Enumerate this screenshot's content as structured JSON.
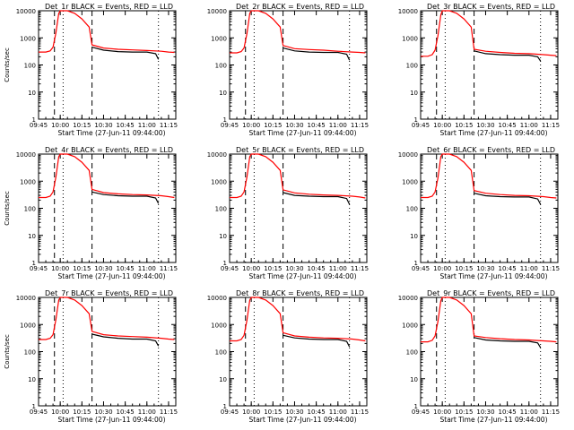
{
  "colors": {
    "events": "#000000",
    "lld": "#ff0000",
    "axes": "#000000",
    "background": "#ffffff"
  },
  "chart_data": [
    {
      "type": "line",
      "title": "Det_1r  BLACK = Events, RED = LLD",
      "xlabel": "Start Time (27-Jun-11 09:44:00)",
      "ylabel": "Counts/sec",
      "scale_y": "log",
      "ylim": [
        1,
        10000
      ],
      "xlim": [
        "09:45",
        "11:20"
      ],
      "xticks": [
        "09:45",
        "10:00",
        "10:15",
        "10:30",
        "10:45",
        "11:00",
        "11:15"
      ],
      "yticks": [
        "1",
        "10",
        "100",
        "1000",
        "10000"
      ],
      "dashed_vlines": [
        "09:56",
        "10:22"
      ],
      "dotted_vlines": [
        "10:02",
        "11:08"
      ],
      "grid": false,
      "series": [
        {
          "color": "red",
          "x": [
            "09:45",
            "09:50",
            "09:53",
            "09:55",
            "09:57",
            "09:59",
            "10:00",
            "10:05",
            "10:10",
            "10:15",
            "10:20",
            "10:22",
            "10:30",
            "10:40",
            "10:50",
            "11:00",
            "11:10",
            "11:15",
            "11:19"
          ],
          "values": [
            300,
            300,
            330,
            450,
            1500,
            8000,
            10000,
            10000,
            8000,
            5000,
            2500,
            550,
            420,
            380,
            360,
            340,
            320,
            300,
            290
          ]
        },
        {
          "color": "black",
          "x": [
            "10:22",
            "10:30",
            "10:40",
            "10:50",
            "11:00",
            "11:06",
            "11:08"
          ],
          "values": [
            450,
            350,
            310,
            300,
            300,
            260,
            160
          ]
        }
      ]
    },
    {
      "type": "line",
      "title": "Det_2r  BLACK = Events, RED = LLD",
      "xlabel": "Start Time (27-Jun-11 09:44:00)",
      "ylabel": "",
      "scale_y": "log",
      "ylim": [
        1,
        10000
      ],
      "xlim": [
        "09:45",
        "11:20"
      ],
      "xticks": [
        "09:45",
        "10:00",
        "10:15",
        "10:30",
        "10:45",
        "11:00",
        "11:15"
      ],
      "yticks": [
        "1",
        "10",
        "100",
        "1000",
        "10000"
      ],
      "dashed_vlines": [
        "09:56",
        "10:22"
      ],
      "dotted_vlines": [
        "10:02",
        "11:08"
      ],
      "grid": false,
      "series": [
        {
          "color": "red",
          "x": [
            "09:45",
            "09:50",
            "09:53",
            "09:55",
            "09:57",
            "09:59",
            "10:00",
            "10:05",
            "10:10",
            "10:15",
            "10:20",
            "10:22",
            "10:30",
            "10:40",
            "10:50",
            "11:00",
            "11:10",
            "11:15",
            "11:19"
          ],
          "values": [
            280,
            280,
            310,
            420,
            1400,
            8000,
            10000,
            10000,
            8000,
            5000,
            2500,
            520,
            400,
            370,
            350,
            320,
            300,
            290,
            280
          ]
        },
        {
          "color": "black",
          "x": [
            "10:22",
            "10:30",
            "10:40",
            "10:50",
            "11:00",
            "11:06",
            "11:08"
          ],
          "values": [
            420,
            330,
            300,
            290,
            290,
            250,
            150
          ]
        }
      ]
    },
    {
      "type": "line",
      "title": "Det_3r  BLACK = Events, RED = LLD",
      "xlabel": "Start Time (27-Jun-11 09:44:00)",
      "ylabel": "",
      "scale_y": "log",
      "ylim": [
        1,
        10000
      ],
      "xlim": [
        "09:45",
        "11:20"
      ],
      "xticks": [
        "09:45",
        "10:00",
        "10:15",
        "10:30",
        "10:45",
        "11:00",
        "11:15"
      ],
      "yticks": [
        "1",
        "10",
        "100",
        "1000",
        "10000"
      ],
      "dashed_vlines": [
        "09:56",
        "10:22"
      ],
      "dotted_vlines": [
        "10:02",
        "11:08"
      ],
      "grid": false,
      "series": [
        {
          "color": "red",
          "x": [
            "09:45",
            "09:50",
            "09:53",
            "09:55",
            "09:57",
            "09:59",
            "10:00",
            "10:05",
            "10:10",
            "10:15",
            "10:20",
            "10:22",
            "10:30",
            "10:40",
            "10:50",
            "11:00",
            "11:10",
            "11:15",
            "11:19"
          ],
          "values": [
            210,
            210,
            240,
            350,
            1200,
            7000,
            10000,
            10000,
            8000,
            5000,
            2500,
            380,
            320,
            290,
            270,
            260,
            240,
            230,
            220
          ]
        },
        {
          "color": "black",
          "x": [
            "10:22",
            "10:30",
            "10:40",
            "10:50",
            "11:00",
            "11:06",
            "11:08"
          ],
          "values": [
            330,
            260,
            240,
            230,
            230,
            200,
            140
          ]
        }
      ]
    },
    {
      "type": "line",
      "title": "Det_4r  BLACK = Events, RED = LLD",
      "xlabel": "Start Time (27-Jun-11 09:44:00)",
      "ylabel": "Counts/sec",
      "scale_y": "log",
      "ylim": [
        1,
        10000
      ],
      "xlim": [
        "09:45",
        "11:20"
      ],
      "xticks": [
        "09:45",
        "10:00",
        "10:15",
        "10:30",
        "10:45",
        "11:00",
        "11:15"
      ],
      "yticks": [
        "1",
        "10",
        "100",
        "1000",
        "10000"
      ],
      "dashed_vlines": [
        "09:56",
        "10:22"
      ],
      "dotted_vlines": [
        "10:02",
        "11:08"
      ],
      "grid": false,
      "series": [
        {
          "color": "red",
          "x": [
            "09:45",
            "09:50",
            "09:53",
            "09:55",
            "09:57",
            "09:59",
            "10:00",
            "10:05",
            "10:10",
            "10:15",
            "10:20",
            "10:22",
            "10:30",
            "10:40",
            "10:50",
            "11:00",
            "11:10",
            "11:15",
            "11:19"
          ],
          "values": [
            250,
            250,
            280,
            400,
            1400,
            8000,
            10000,
            10000,
            8000,
            5000,
            2500,
            500,
            380,
            340,
            320,
            310,
            290,
            270,
            250
          ]
        },
        {
          "color": "black",
          "x": [
            "10:22",
            "10:30",
            "10:40",
            "10:50",
            "11:00",
            "11:06",
            "11:08"
          ],
          "values": [
            400,
            320,
            290,
            280,
            280,
            240,
            150
          ]
        }
      ]
    },
    {
      "type": "line",
      "title": "Det_5r  BLACK = Events, RED = LLD",
      "xlabel": "Start Time (27-Jun-11 09:44:00)",
      "ylabel": "",
      "scale_y": "log",
      "ylim": [
        1,
        10000
      ],
      "xlim": [
        "09:45",
        "11:20"
      ],
      "xticks": [
        "09:45",
        "10:00",
        "10:15",
        "10:30",
        "10:45",
        "11:00",
        "11:15"
      ],
      "yticks": [
        "1",
        "10",
        "100",
        "1000",
        "10000"
      ],
      "dashed_vlines": [
        "09:56",
        "10:22"
      ],
      "dotted_vlines": [
        "10:02",
        "11:08"
      ],
      "grid": false,
      "series": [
        {
          "color": "red",
          "x": [
            "09:45",
            "09:50",
            "09:53",
            "09:55",
            "09:57",
            "09:59",
            "10:00",
            "10:05",
            "10:10",
            "10:15",
            "10:20",
            "10:22",
            "10:30",
            "10:40",
            "10:50",
            "11:00",
            "11:10",
            "11:15",
            "11:19"
          ],
          "values": [
            250,
            250,
            280,
            400,
            1400,
            8000,
            10000,
            10000,
            8000,
            5000,
            2500,
            480,
            370,
            330,
            310,
            300,
            280,
            260,
            240
          ]
        },
        {
          "color": "black",
          "x": [
            "10:22",
            "10:30",
            "10:40",
            "10:50",
            "11:00",
            "11:06",
            "11:08"
          ],
          "values": [
            380,
            300,
            280,
            270,
            270,
            230,
            140
          ]
        }
      ]
    },
    {
      "type": "line",
      "title": "Det_6r  BLACK = Events, RED = LLD",
      "xlabel": "Start Time (27-Jun-11 09:44:00)",
      "ylabel": "",
      "scale_y": "log",
      "ylim": [
        1,
        10000
      ],
      "xlim": [
        "09:45",
        "11:20"
      ],
      "xticks": [
        "09:45",
        "10:00",
        "10:15",
        "10:30",
        "10:45",
        "11:00",
        "11:15"
      ],
      "yticks": [
        "1",
        "10",
        "100",
        "1000",
        "10000"
      ],
      "dashed_vlines": [
        "09:56",
        "10:22"
      ],
      "dotted_vlines": [
        "10:02",
        "11:08"
      ],
      "grid": false,
      "series": [
        {
          "color": "red",
          "x": [
            "09:45",
            "09:50",
            "09:53",
            "09:55",
            "09:57",
            "09:59",
            "10:00",
            "10:05",
            "10:10",
            "10:15",
            "10:20",
            "10:22",
            "10:30",
            "10:40",
            "10:50",
            "11:00",
            "11:10",
            "11:15",
            "11:19"
          ],
          "values": [
            250,
            250,
            280,
            400,
            1300,
            8000,
            10000,
            10000,
            8000,
            5000,
            2500,
            450,
            360,
            320,
            300,
            290,
            270,
            250,
            240
          ]
        },
        {
          "color": "black",
          "x": [
            "10:22",
            "10:30",
            "10:40",
            "10:50",
            "11:00",
            "11:06",
            "11:08"
          ],
          "values": [
            360,
            290,
            270,
            260,
            260,
            220,
            140
          ]
        }
      ]
    },
    {
      "type": "line",
      "title": "Det_7r  BLACK = Events, RED = LLD",
      "xlabel": "Start Time (27-Jun-11 09:44:00)",
      "ylabel": "Counts/sec",
      "scale_y": "log",
      "ylim": [
        1,
        10000
      ],
      "xlim": [
        "09:45",
        "11:20"
      ],
      "xticks": [
        "09:45",
        "10:00",
        "10:15",
        "10:30",
        "10:45",
        "11:00",
        "11:15"
      ],
      "yticks": [
        "1",
        "10",
        "100",
        "1000",
        "10000"
      ],
      "dashed_vlines": [
        "09:56",
        "10:22"
      ],
      "dotted_vlines": [
        "10:02",
        "11:08"
      ],
      "grid": false,
      "series": [
        {
          "color": "red",
          "x": [
            "09:45",
            "09:50",
            "09:53",
            "09:55",
            "09:57",
            "09:59",
            "10:00",
            "10:05",
            "10:10",
            "10:15",
            "10:20",
            "10:22",
            "10:30",
            "10:40",
            "10:50",
            "11:00",
            "11:10",
            "11:15",
            "11:19"
          ],
          "values": [
            280,
            280,
            310,
            420,
            1500,
            8000,
            10000,
            10000,
            8000,
            5000,
            2500,
            560,
            420,
            380,
            360,
            340,
            310,
            290,
            280
          ]
        },
        {
          "color": "black",
          "x": [
            "10:22",
            "10:30",
            "10:40",
            "10:50",
            "11:00",
            "11:06",
            "11:08"
          ],
          "values": [
            440,
            350,
            310,
            290,
            290,
            250,
            160
          ]
        }
      ]
    },
    {
      "type": "line",
      "title": "Det_8r  BLACK = Events, RED = LLD",
      "xlabel": "Start Time (27-Jun-11 09:44:00)",
      "ylabel": "",
      "scale_y": "log",
      "ylim": [
        1,
        10000
      ],
      "xlim": [
        "09:45",
        "11:20"
      ],
      "xticks": [
        "09:45",
        "10:00",
        "10:15",
        "10:30",
        "10:45",
        "11:00",
        "11:15"
      ],
      "yticks": [
        "1",
        "10",
        "100",
        "1000",
        "10000"
      ],
      "dashed_vlines": [
        "09:56",
        "10:22"
      ],
      "dotted_vlines": [
        "10:02",
        "11:08"
      ],
      "grid": false,
      "series": [
        {
          "color": "red",
          "x": [
            "09:45",
            "09:50",
            "09:53",
            "09:55",
            "09:57",
            "09:59",
            "10:00",
            "10:05",
            "10:10",
            "10:15",
            "10:20",
            "10:22",
            "10:30",
            "10:40",
            "10:50",
            "11:00",
            "11:10",
            "11:15",
            "11:19"
          ],
          "values": [
            250,
            250,
            280,
            400,
            1400,
            8000,
            10000,
            10000,
            8000,
            5000,
            2500,
            500,
            380,
            340,
            320,
            310,
            290,
            270,
            250
          ]
        },
        {
          "color": "black",
          "x": [
            "10:22",
            "10:30",
            "10:40",
            "10:50",
            "11:00",
            "11:06",
            "11:08"
          ],
          "values": [
            400,
            320,
            290,
            280,
            280,
            240,
            150
          ]
        }
      ]
    },
    {
      "type": "line",
      "title": "Det_9r  BLACK = Events, RED = LLD",
      "xlabel": "Start Time (27-Jun-11 09:44:00)",
      "ylabel": "",
      "scale_y": "log",
      "ylim": [
        1,
        10000
      ],
      "xlim": [
        "09:45",
        "11:20"
      ],
      "xticks": [
        "09:45",
        "10:00",
        "10:15",
        "10:30",
        "10:45",
        "11:00",
        "11:15"
      ],
      "yticks": [
        "1",
        "10",
        "100",
        "1000",
        "10000"
      ],
      "dashed_vlines": [
        "09:56",
        "10:22"
      ],
      "dotted_vlines": [
        "10:02",
        "11:08"
      ],
      "grid": false,
      "series": [
        {
          "color": "red",
          "x": [
            "09:45",
            "09:50",
            "09:53",
            "09:55",
            "09:57",
            "09:59",
            "10:00",
            "10:05",
            "10:10",
            "10:15",
            "10:20",
            "10:22",
            "10:30",
            "10:40",
            "10:50",
            "11:00",
            "11:10",
            "11:15",
            "11:19"
          ],
          "values": [
            230,
            230,
            260,
            380,
            1300,
            7500,
            10000,
            10000,
            8000,
            5000,
            2500,
            380,
            330,
            300,
            280,
            270,
            250,
            240,
            230
          ]
        },
        {
          "color": "black",
          "x": [
            "10:22",
            "10:30",
            "10:40",
            "10:50",
            "11:00",
            "11:06",
            "11:08"
          ],
          "values": [
            330,
            270,
            250,
            240,
            240,
            210,
            140
          ]
        }
      ]
    }
  ]
}
